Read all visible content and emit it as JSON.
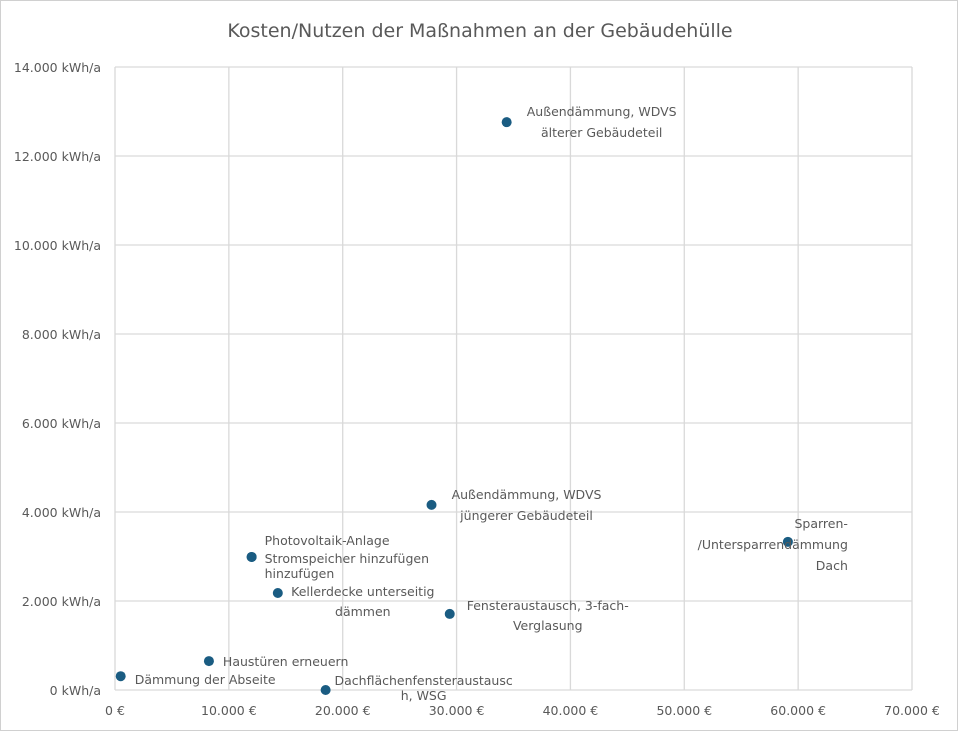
{
  "chart_data": {
    "type": "scatter",
    "title": "Kosten/Nutzen der Maßnahmen an der Gebäudehülle",
    "xlabel": "",
    "ylabel": "",
    "xlim": [
      0,
      70000
    ],
    "ylim": [
      0,
      14000
    ],
    "grid": true,
    "x_ticks": [
      "0 €",
      "10.000 €",
      "20.000 €",
      "30.000 €",
      "40.000 €",
      "50.000 €",
      "60.000 €",
      "70.000 €"
    ],
    "x_tick_values": [
      0,
      10000,
      20000,
      30000,
      40000,
      50000,
      60000,
      70000
    ],
    "y_ticks": [
      "0 kWh/a",
      "2.000 kWh/a",
      "4.000 kWh/a",
      "6.000 kWh/a",
      "8.000 kWh/a",
      "10.000 kWh/a",
      "12.000 kWh/a",
      "14.000 kWh/a"
    ],
    "y_tick_values": [
      0,
      2000,
      4000,
      6000,
      8000,
      10000,
      12000,
      14000
    ],
    "marker_color": "#1a5c82",
    "points": [
      {
        "label_lines": [
          "Außendämmung, WDVS",
          "älterer Gebäudeteil"
        ],
        "x": 34400,
        "y": 12760
      },
      {
        "label_lines": [
          "Außendämmung, WDVS",
          "jüngerer Gebäudeteil"
        ],
        "x": 27800,
        "y": 4160
      },
      {
        "label_lines": [
          "Sparren-",
          "/Untersparrendämmung",
          "Dach"
        ],
        "x": 59100,
        "y": 3330
      },
      {
        "label_lines": [
          "Photovoltaik-Anlage"
        ],
        "x": 12000,
        "y": 2990
      },
      {
        "label_lines": [
          "Stromspeicher hinzufügen",
          "hinzufügen"
        ],
        "x": 12000,
        "y": 2990
      },
      {
        "label_lines": [
          "Kellerdecke unterseitig",
          "dämmen"
        ],
        "x": 14300,
        "y": 2180
      },
      {
        "label_lines": [
          "Fensteraustausch, 3-fach-",
          "Verglasung"
        ],
        "x": 29400,
        "y": 1710
      },
      {
        "label_lines": [
          "Haustüren erneuern"
        ],
        "x": 8250,
        "y": 650
      },
      {
        "label_lines": [
          "Dämmung der Abseite"
        ],
        "x": 500,
        "y": 310
      },
      {
        "label_lines": [
          "Dachflächenfensteraustausc",
          "h, WSG"
        ],
        "x": 18500,
        "y": 0
      }
    ]
  }
}
